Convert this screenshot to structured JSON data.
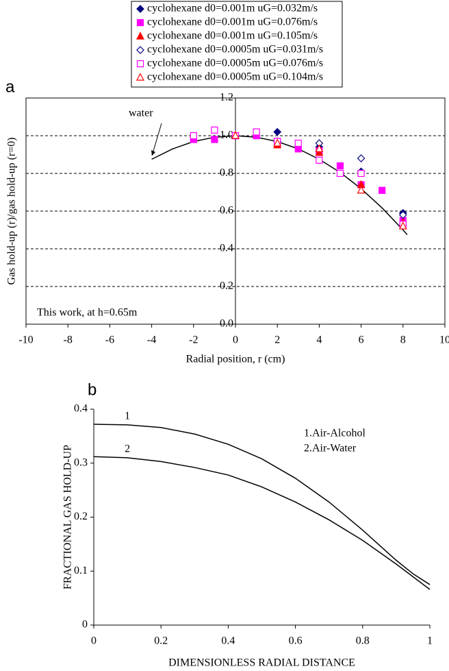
{
  "chart_data": [
    {
      "type": "scatter",
      "panel": "a",
      "xlabel": "Radial position, r (cm)",
      "ylabel": "Gas hold-up (r)/gas hold-up (r=0)",
      "annotation": "This work, at h=0.65m",
      "xlim": [
        -10,
        10
      ],
      "xticks": [
        -10,
        -8,
        -6,
        -4,
        -2,
        0,
        2,
        4,
        6,
        8,
        10
      ],
      "ylim": [
        0,
        1.2
      ],
      "yticks": [
        {
          "value": 0,
          "label": "0.0"
        },
        0.2,
        0.4,
        0.6,
        0.8,
        {
          "value": 1,
          "label": "1.0"
        },
        1.2
      ],
      "grid": true,
      "series": [
        {
          "name": "cyclohexane d0=0.001m uG=0.032m/s",
          "color": "#000080",
          "marker": "diamond",
          "filled": true,
          "x": [
            0,
            2,
            4,
            6,
            8
          ],
          "values": [
            1.0,
            1.02,
            0.94,
            0.81,
            0.59
          ]
        },
        {
          "name": "cyclohexane d0=0.001m uG=0.076m/s",
          "color": "#ff00ff",
          "marker": "square",
          "filled": true,
          "x": [
            -2,
            -1,
            0,
            1,
            2,
            3,
            4,
            5,
            6,
            7,
            8
          ],
          "values": [
            0.98,
            0.98,
            1.0,
            1.0,
            0.97,
            0.93,
            0.92,
            0.84,
            0.74,
            0.71,
            0.55
          ]
        },
        {
          "name": "cyclohexane d0=0.001m uG=0.105m/s",
          "color": "#ff0000",
          "marker": "triangle",
          "filled": true,
          "x": [
            0,
            2,
            4,
            6,
            8
          ],
          "values": [
            1.0,
            0.95,
            0.91,
            0.74,
            0.54
          ]
        },
        {
          "name": "cyclohexane d0=0.0005m uG=0.031m/s",
          "color": "#000080",
          "marker": "diamond",
          "filled": false,
          "x": [
            0,
            2,
            4,
            6,
            8
          ],
          "values": [
            1.0,
            0.97,
            0.96,
            0.88,
            0.58
          ]
        },
        {
          "name": "cyclohexane d0=0.0005m uG=0.076m/s",
          "color": "#ff00ff",
          "marker": "square",
          "filled": false,
          "x": [
            -2,
            -1,
            0,
            1,
            2,
            3,
            4,
            5,
            6,
            8
          ],
          "values": [
            1.0,
            1.03,
            1.0,
            1.02,
            0.97,
            0.96,
            0.87,
            0.8,
            0.8,
            0.53
          ]
        },
        {
          "name": "cyclohexane d0=0.0005m uG=0.104m/s",
          "color": "#ff0000",
          "marker": "triangle",
          "filled": false,
          "x": [
            0,
            2,
            4,
            6,
            8
          ],
          "values": [
            1.0,
            0.96,
            0.93,
            0.71,
            0.52
          ]
        }
      ],
      "curve": {
        "name": "water",
        "color": "#000000",
        "x": [
          -4,
          -3,
          -2,
          -1,
          0,
          1,
          2,
          3,
          4,
          5,
          6,
          7,
          8,
          8.2
        ],
        "values": [
          0.875,
          0.93,
          0.969,
          0.992,
          1.0,
          0.992,
          0.969,
          0.93,
          0.875,
          0.805,
          0.719,
          0.617,
          0.5,
          0.475
        ]
      }
    },
    {
      "type": "line",
      "panel": "b",
      "xlabel": "DIMENSIONLESS RADIAL DISTANCE",
      "ylabel": "FRACTIONAL GAS HOLD-UP",
      "xlim": [
        0,
        1
      ],
      "xticks": [
        0,
        0.2,
        0.4,
        0.6,
        0.8,
        1
      ],
      "ylim": [
        0,
        0.4
      ],
      "yticks": [
        0,
        0.1,
        0.2,
        0.3,
        0.4
      ],
      "curve_labels": [
        "1",
        "2"
      ],
      "series": [
        {
          "name": "1.Air-Alcohol",
          "color": "#000000",
          "x": [
            0,
            0.1,
            0.2,
            0.3,
            0.4,
            0.5,
            0.6,
            0.7,
            0.8,
            0.9,
            0.95,
            1
          ],
          "values": [
            0.372,
            0.371,
            0.366,
            0.354,
            0.335,
            0.308,
            0.272,
            0.228,
            0.176,
            0.12,
            0.095,
            0.075
          ]
        },
        {
          "name": "2.Air-Water",
          "color": "#000000",
          "x": [
            0,
            0.1,
            0.2,
            0.3,
            0.4,
            0.5,
            0.6,
            0.7,
            0.8,
            0.9,
            1
          ],
          "values": [
            0.312,
            0.31,
            0.303,
            0.292,
            0.278,
            0.256,
            0.228,
            0.195,
            0.157,
            0.113,
            0.066
          ]
        }
      ]
    }
  ]
}
